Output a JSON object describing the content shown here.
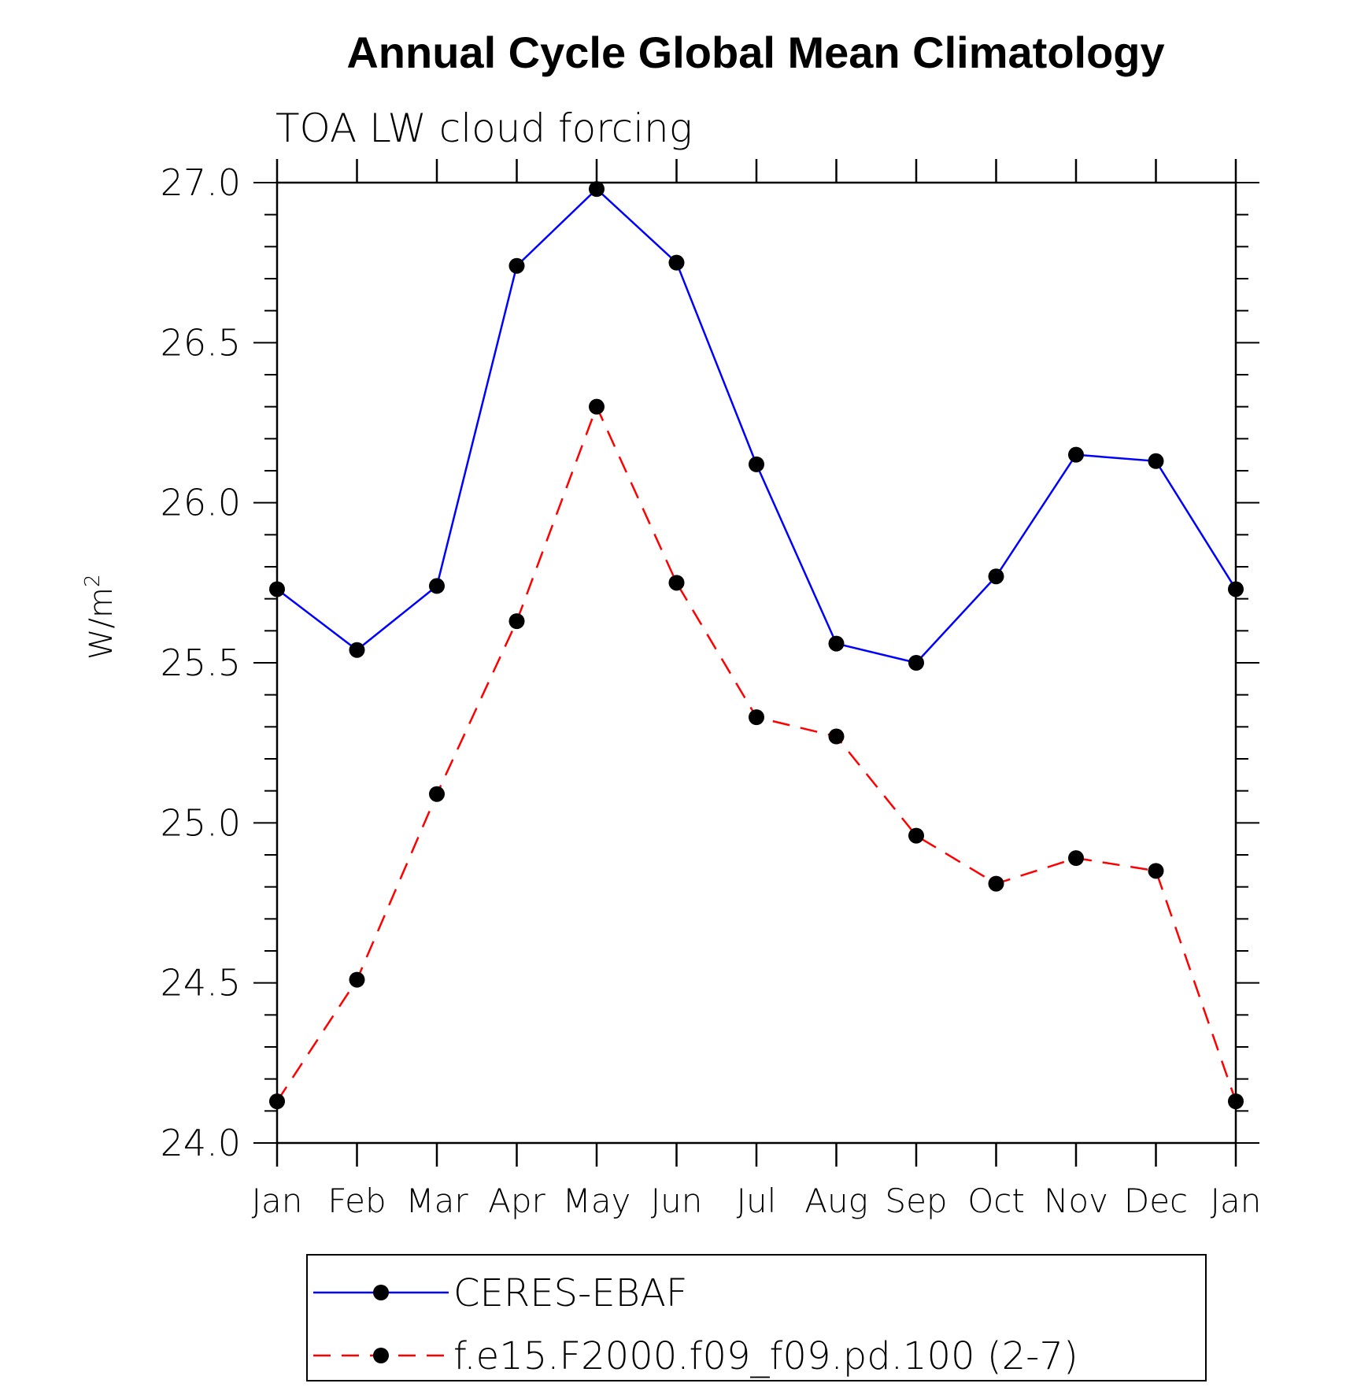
{
  "chart_data": {
    "type": "line",
    "title": "Annual Cycle Global Mean Climatology",
    "subtitle": "TOA LW cloud forcing",
    "ylabel_base": "W/m",
    "ylabel_sup": "2",
    "ylim": [
      24.0,
      27.0
    ],
    "yticks": [
      "27.0",
      "26.5",
      "26.0",
      "25.5",
      "25.0",
      "24.5",
      "24.0"
    ],
    "ytick_values": [
      27.0,
      26.5,
      26.0,
      25.5,
      25.0,
      24.5,
      24.0
    ],
    "categories": [
      "Jan",
      "Feb",
      "Mar",
      "Apr",
      "May",
      "Jun",
      "Jul",
      "Aug",
      "Sep",
      "Oct",
      "Nov",
      "Dec",
      "Jan"
    ],
    "grid": false,
    "legend_position": "bottom",
    "series": [
      {
        "name": "CERES-EBAF",
        "color": "#0000ff",
        "dash": "solid",
        "values": [
          25.73,
          25.54,
          25.74,
          26.74,
          26.98,
          26.75,
          26.12,
          25.56,
          25.5,
          25.77,
          26.15,
          26.13,
          25.73
        ]
      },
      {
        "name": "f.e15.F2000.f09_f09.pd.100 (2-7)",
        "color": "#ff0000",
        "dash": "dashed",
        "values": [
          24.13,
          24.51,
          25.09,
          25.63,
          26.3,
          25.75,
          25.33,
          25.27,
          24.96,
          24.81,
          24.89,
          24.85,
          24.13
        ]
      }
    ]
  }
}
